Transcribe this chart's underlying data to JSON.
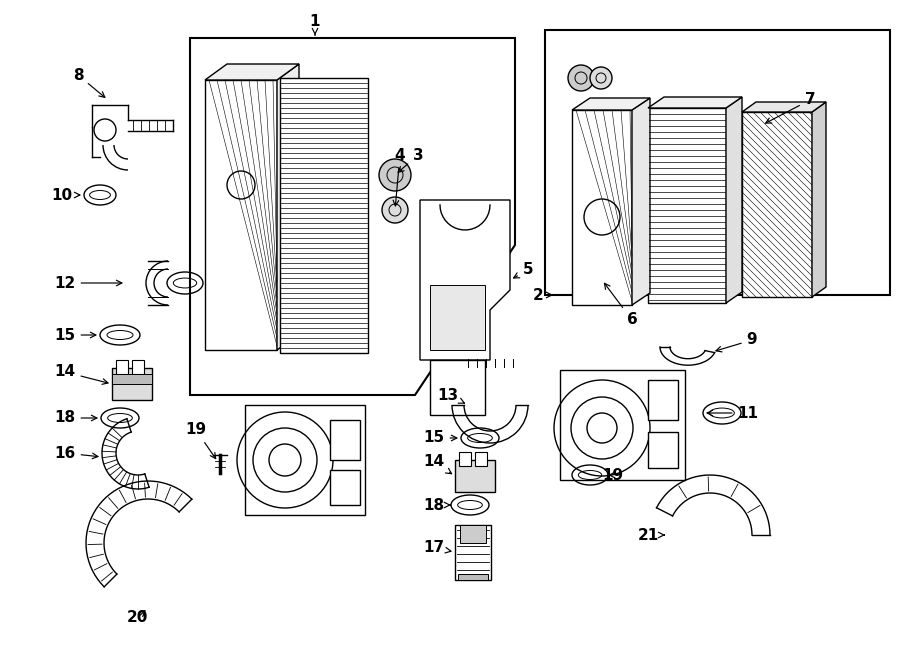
{
  "bg_color": "#ffffff",
  "lc": "#000000",
  "lw": 1.0,
  "fig_w": 9.0,
  "fig_h": 6.61,
  "dpi": 100,
  "parts": {
    "label_fontsize": 11,
    "arrow_lw": 0.8
  }
}
